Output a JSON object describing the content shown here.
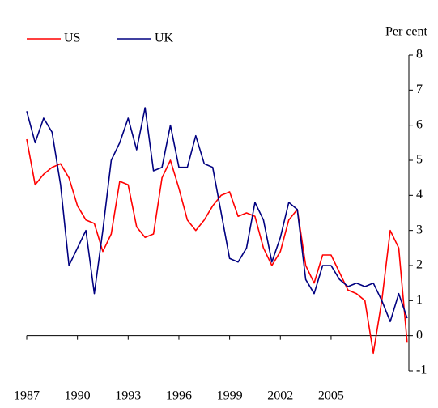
{
  "chart_data": {
    "type": "line",
    "y_label": "Per cent",
    "x": [
      1987,
      1987.5,
      1988,
      1988.5,
      1989,
      1989.5,
      1990,
      1990.5,
      1991,
      1991.5,
      1992,
      1992.5,
      1993,
      1993.5,
      1994,
      1994.5,
      1995,
      1995.5,
      1996,
      1996.5,
      1997,
      1997.5,
      1998,
      1998.5,
      1999,
      1999.5,
      2000,
      2000.5,
      2001,
      2001.5,
      2002,
      2002.5,
      2003,
      2003.5,
      2004,
      2004.5,
      2005,
      2005.5,
      2006,
      2006.5,
      2007,
      2007.5,
      2008,
      2008.5,
      2009,
      2009.5
    ],
    "series": [
      {
        "name": "US",
        "color": "#ff0000",
        "values": [
          5.6,
          4.3,
          4.6,
          4.8,
          4.9,
          4.5,
          3.7,
          3.3,
          3.2,
          2.4,
          2.9,
          4.4,
          4.3,
          3.1,
          2.8,
          2.9,
          4.5,
          5.0,
          4.2,
          3.3,
          3.0,
          3.3,
          3.7,
          4.0,
          4.1,
          3.4,
          3.5,
          3.4,
          2.5,
          2.0,
          2.4,
          3.3,
          3.6,
          2.0,
          1.5,
          2.3,
          2.3,
          1.8,
          1.3,
          1.2,
          1.0,
          -0.5,
          1.0,
          3.0,
          2.5,
          -0.2
        ]
      },
      {
        "name": "UK",
        "color": "#000080",
        "values": [
          6.4,
          5.5,
          6.2,
          5.8,
          4.3,
          2.0,
          2.5,
          3.0,
          1.2,
          3.0,
          5.0,
          5.5,
          6.2,
          5.3,
          6.5,
          4.7,
          4.8,
          6.0,
          4.8,
          4.8,
          5.7,
          4.9,
          4.8,
          3.5,
          2.2,
          2.1,
          2.5,
          3.8,
          3.3,
          2.1,
          2.8,
          3.8,
          3.6,
          1.6,
          1.2,
          2.0,
          2.0,
          1.6,
          1.4,
          1.5,
          1.4,
          1.5,
          1.0,
          0.4,
          1.2,
          0.5
        ]
      }
    ],
    "xlim": [
      1987,
      2009.6
    ],
    "xticks": [
      1987,
      1990,
      1993,
      1996,
      1999,
      2002,
      2005
    ],
    "ylim": [
      -1,
      8
    ],
    "yticks": [
      -1,
      0,
      1,
      2,
      3,
      4,
      5,
      6,
      7,
      8
    ],
    "legend": "top-left",
    "grid": false
  }
}
